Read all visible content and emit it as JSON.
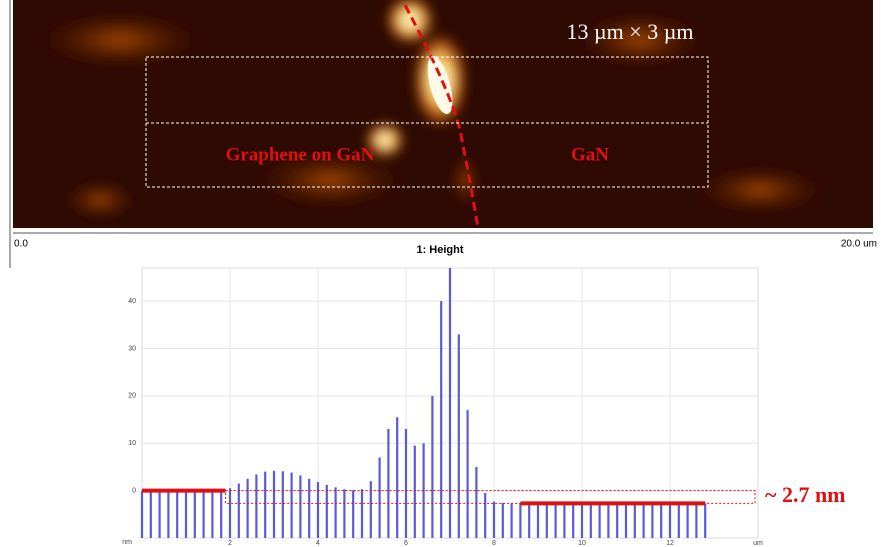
{
  "image": {
    "scale_label": "13 µm × 3 µm",
    "region_left": "Graphene on GaN",
    "region_right": "GaN",
    "axis_start": "0.0",
    "axis_end": "20.0 um",
    "title": "1: Height"
  },
  "chart_data": {
    "type": "bar",
    "x_unit": "um",
    "y_unit": "nm",
    "color": "#5a5ad6",
    "x": [
      0,
      0.2,
      0.4,
      0.6,
      0.8,
      1.0,
      1.2,
      1.4,
      1.6,
      1.8,
      2.0,
      2.2,
      2.4,
      2.6,
      2.8,
      3.0,
      3.2,
      3.4,
      3.6,
      3.8,
      4.0,
      4.2,
      4.4,
      4.6,
      4.8,
      5.0,
      5.2,
      5.4,
      5.6,
      5.8,
      6.0,
      6.2,
      6.4,
      6.6,
      6.8,
      7.0,
      7.2,
      7.4,
      7.6,
      7.8,
      8.0,
      8.2,
      8.4,
      8.6,
      8.8,
      9.0,
      9.2,
      9.4,
      9.6,
      9.8,
      10.0,
      10.2,
      10.4,
      10.6,
      10.8,
      11.0,
      11.2,
      11.4,
      11.6,
      11.8,
      12.0,
      12.2,
      12.4,
      12.6,
      12.8
    ],
    "values": [
      0,
      0,
      0,
      0,
      0,
      0,
      0,
      0,
      0,
      0,
      0.5,
      1.5,
      2.5,
      3.4,
      4,
      4.2,
      4.1,
      3.8,
      3.2,
      2.5,
      1.8,
      1.2,
      0.7,
      0.3,
      0.1,
      0.3,
      2,
      7,
      13,
      15.5,
      13,
      9.5,
      10,
      20,
      40,
      47,
      33,
      17,
      5,
      -0.5,
      -2.3,
      -2.6,
      -2.7,
      -2.7,
      -2.7,
      -2.7,
      -2.7,
      -2.7,
      -2.7,
      -2.7,
      -2.7,
      -2.6,
      -2.6,
      -2.6,
      -2.6,
      -2.5,
      -2.5,
      -2.5,
      -2.5,
      -2.5,
      -2.5,
      -2.6,
      -2.6,
      -2.7,
      -2.7
    ],
    "xlim": [
      0,
      14
    ],
    "xticks": [
      2,
      4,
      6,
      8,
      10,
      12
    ],
    "ylim": [
      -10,
      47
    ],
    "yticks": [
      0,
      10,
      20,
      30,
      40
    ],
    "grid": true,
    "reference_lines": [
      {
        "value": 0,
        "x": [
          0,
          1.9
        ]
      },
      {
        "value": -2.7,
        "x": [
          8.6,
          12.8
        ]
      }
    ],
    "annotation": "~ 2.7 nm"
  }
}
